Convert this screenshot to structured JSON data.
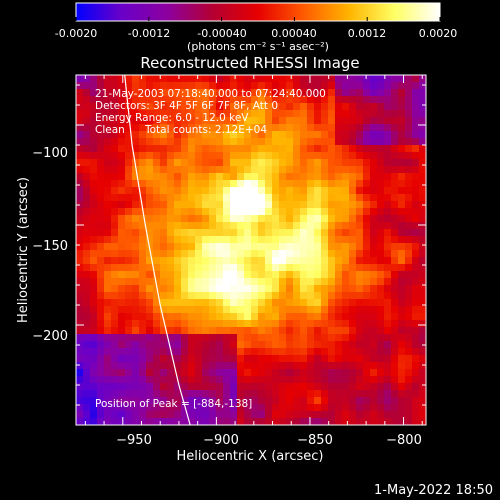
{
  "colors": {
    "background": "#000000",
    "foreground": "#ffffff",
    "colormap_stops": [
      "#0000ff",
      "#6a00c8",
      "#8c00a0",
      "#b40032",
      "#e60000",
      "#ff5a00",
      "#ffb400",
      "#ffff64",
      "#ffffff"
    ]
  },
  "colorbar": {
    "tick_labels": [
      "-0.0020",
      "-0.0012",
      "-0.00040",
      "0.00040",
      "0.0012",
      "0.0020"
    ],
    "tick_values": [
      -0.002,
      -0.0012,
      -0.0004,
      0.0004,
      0.0012,
      0.002
    ],
    "range": [
      -0.002,
      0.002
    ],
    "units_label": "(photons cm⁻² s⁻¹ asec⁻²)"
  },
  "chart_data": {
    "type": "heatmap",
    "title": "Reconstructed RHESSI Image",
    "xlabel": "Heliocentric X (arcsec)",
    "ylabel": "Heliocentric Y (arcsec)",
    "xlim": [
      -975,
      -788
    ],
    "ylim": [
      -250,
      -75
    ],
    "x_ticks": [
      -950,
      -900,
      -850,
      -800
    ],
    "x_tick_labels": [
      "−950",
      "−900",
      "−850",
      "−800"
    ],
    "y_ticks": [
      -100,
      -150,
      -200
    ],
    "y_tick_labels": [
      "−100",
      "−150",
      "−200"
    ],
    "peak": [
      -884,
      -138
    ],
    "limb_curve": [
      [
        -949,
        -75
      ],
      [
        -945,
        -110
      ],
      [
        -938,
        -150
      ],
      [
        -930,
        -190
      ],
      [
        -920,
        -230
      ],
      [
        -914,
        -250
      ]
    ],
    "annotations": [
      "21-May-2003 07:18:40.000 to 07:24:40.000",
      "Detectors: 3F 4F 5F 6F 7F 8F, Att 0",
      "Energy Range: 6.0 - 12.0 keV",
      "Clean",
      "Total counts: 2.12E+04",
      "Position of Peak = [-884,-138]"
    ]
  },
  "footer": {
    "timestamp": "1-May-2022 18:50"
  }
}
